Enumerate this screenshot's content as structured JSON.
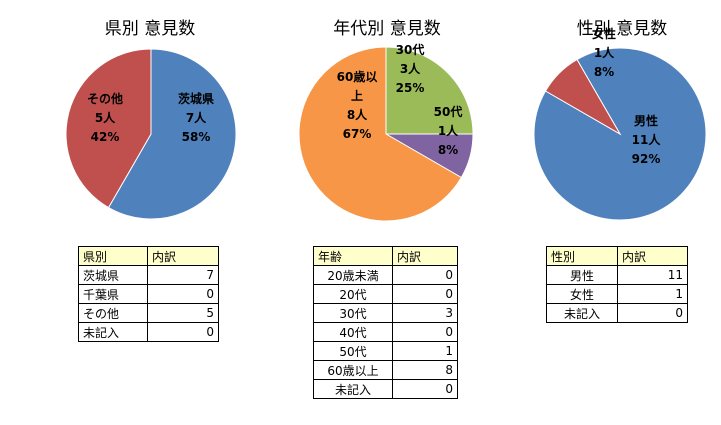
{
  "chart_data": [
    {
      "type": "pie",
      "title": "県別 意見数",
      "slices": [
        {
          "label": "茨城県",
          "count": "7人",
          "percent": "58%",
          "value": 7,
          "color": "#4f81bd"
        },
        {
          "label": "その他",
          "count": "5人",
          "percent": "42%",
          "value": 5,
          "color": "#c0504d"
        }
      ],
      "table": {
        "headers": [
          "県別",
          "内訳"
        ],
        "rows": [
          [
            "茨城県",
            "7"
          ],
          [
            "千葉県",
            "0"
          ],
          [
            "その他",
            "5"
          ],
          [
            "未記入",
            "0"
          ]
        ]
      }
    },
    {
      "type": "pie",
      "title": "年代別 意見数",
      "slices": [
        {
          "label": "30代",
          "count": "3人",
          "percent": "25%",
          "value": 3,
          "color": "#9bbb59"
        },
        {
          "label": "50代",
          "count": "1人",
          "percent": "8%",
          "value": 1,
          "color": "#8064a2"
        },
        {
          "label": "60歳以上",
          "count": "8人",
          "percent": "67%",
          "value": 8,
          "color": "#f79646"
        }
      ],
      "table": {
        "headers": [
          "年齢",
          "内訳"
        ],
        "rows": [
          [
            "20歳未満",
            "0"
          ],
          [
            "20代",
            "0"
          ],
          [
            "30代",
            "3"
          ],
          [
            "40代",
            "0"
          ],
          [
            "50代",
            "1"
          ],
          [
            "60歳以上",
            "8"
          ],
          [
            "未記入",
            "0"
          ]
        ]
      }
    },
    {
      "type": "pie",
      "title": "性別 意見数",
      "slices": [
        {
          "label": "男性",
          "count": "11人",
          "percent": "92%",
          "value": 11,
          "color": "#4f81bd"
        },
        {
          "label": "女性",
          "count": "1人",
          "percent": "8%",
          "value": 1,
          "color": "#c0504d"
        }
      ],
      "table": {
        "headers": [
          "性別",
          "内訳"
        ],
        "rows": [
          [
            "男性",
            "11"
          ],
          [
            "女性",
            "1"
          ],
          [
            "未記入",
            "0"
          ]
        ]
      }
    }
  ]
}
